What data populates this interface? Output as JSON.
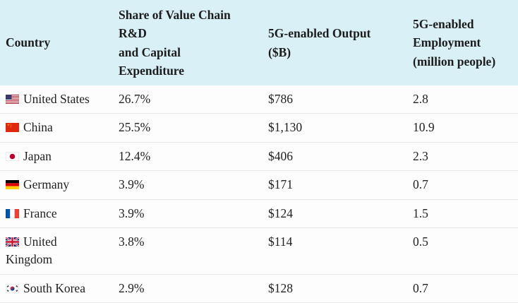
{
  "chart_data": {
    "type": "table",
    "columns": [
      "Country",
      "Share of Value Chain R&D and Capital Expenditure",
      "5G-enabled Output ($B)",
      "5G-enabled Employment (million people)"
    ],
    "rows": [
      {
        "flag": "us",
        "country": "United States",
        "share": "26.7%",
        "output": "$786",
        "employment": "2.8"
      },
      {
        "flag": "cn",
        "country": "China",
        "share": "25.5%",
        "output": "$1,130",
        "employment": "10.9"
      },
      {
        "flag": "jp",
        "country": "Japan",
        "share": "12.4%",
        "output": "$406",
        "employment": "2.3"
      },
      {
        "flag": "de",
        "country": "Germany",
        "share": "3.9%",
        "output": "$171",
        "employment": "0.7"
      },
      {
        "flag": "fr",
        "country": "France",
        "share": "3.9%",
        "output": "$124",
        "employment": "1.5"
      },
      {
        "flag": "gb",
        "country": "United Kingdom",
        "share": "3.8%",
        "output": "$114",
        "employment": "0.5"
      },
      {
        "flag": "kr",
        "country": "South Korea",
        "share": "2.9%",
        "output": "$128",
        "employment": "0.7"
      }
    ]
  },
  "header_display": {
    "country": "Country",
    "share": "Share of Value Chain\nR&D\nand Capital\nExpenditure",
    "output": "5G-enabled Output\n($B)",
    "employment": "5G-enabled\nEmployment\n(million people)"
  },
  "colors": {
    "header_background": "#d9f0f6",
    "row_background": "#fdfdfd",
    "row_border": "#e7e7e7",
    "text": "#212121"
  }
}
